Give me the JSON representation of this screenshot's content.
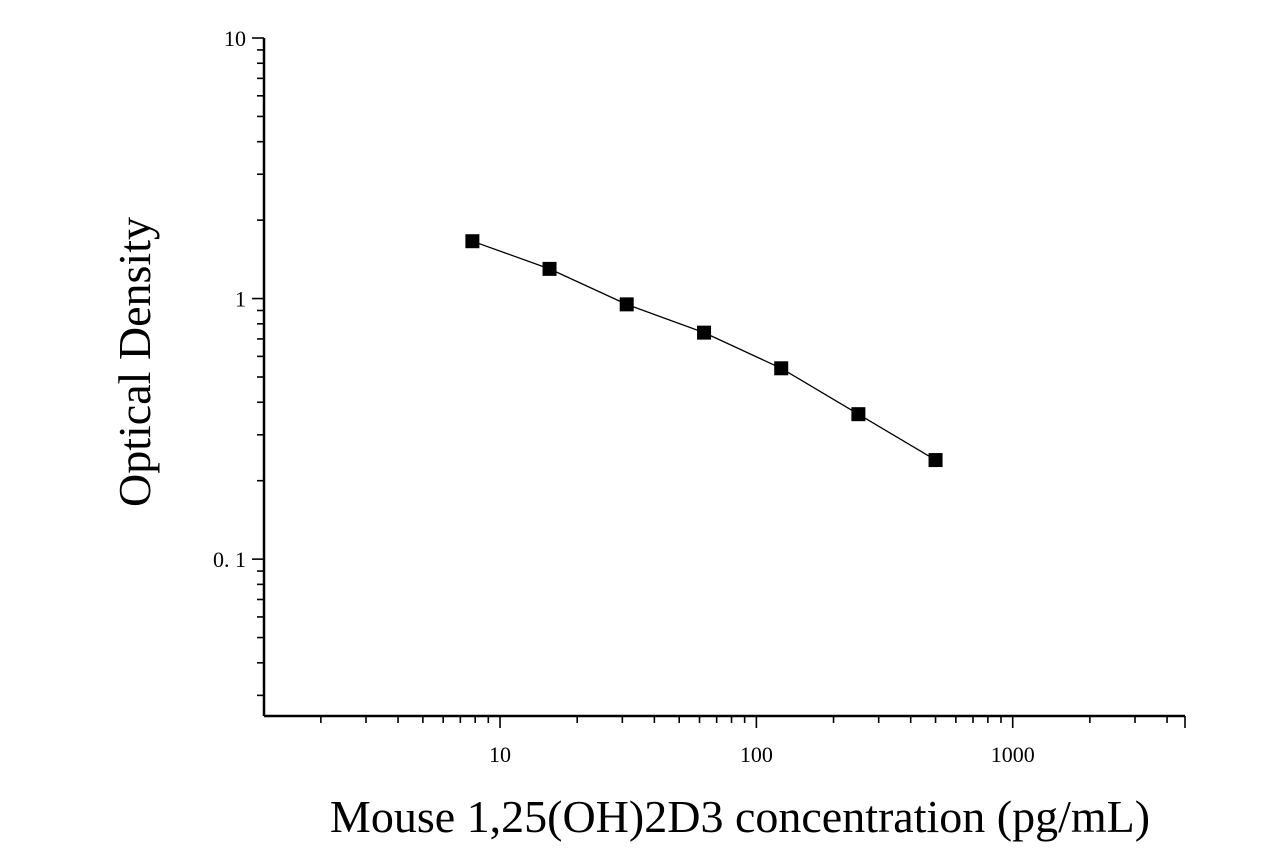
{
  "chart_data": {
    "type": "line",
    "title": "",
    "xlabel": "Mouse 1,25(OH)2D3 concentration (pg/mL)",
    "ylabel": "Optical Density",
    "xscale": "log",
    "yscale": "log",
    "xlim": [
      1.2,
      4700
    ],
    "ylim": [
      0.025,
      10
    ],
    "grid": false,
    "legend": "none",
    "x_tick_labels": [
      {
        "value": 10,
        "label": "10"
      },
      {
        "value": 100,
        "label": "100"
      },
      {
        "value": 1000,
        "label": "1000"
      }
    ],
    "y_tick_labels": [
      {
        "value": 0.1,
        "label": "0. 1"
      },
      {
        "value": 1,
        "label": "1"
      },
      {
        "value": 10,
        "label": "10"
      }
    ],
    "series": [
      {
        "marker": "square",
        "color": "#000000",
        "x": [
          7.8,
          15.6,
          31.2,
          62.5,
          125,
          250,
          500
        ],
        "y": [
          1.66,
          1.3,
          0.95,
          0.74,
          0.54,
          0.36,
          0.24
        ]
      }
    ]
  }
}
